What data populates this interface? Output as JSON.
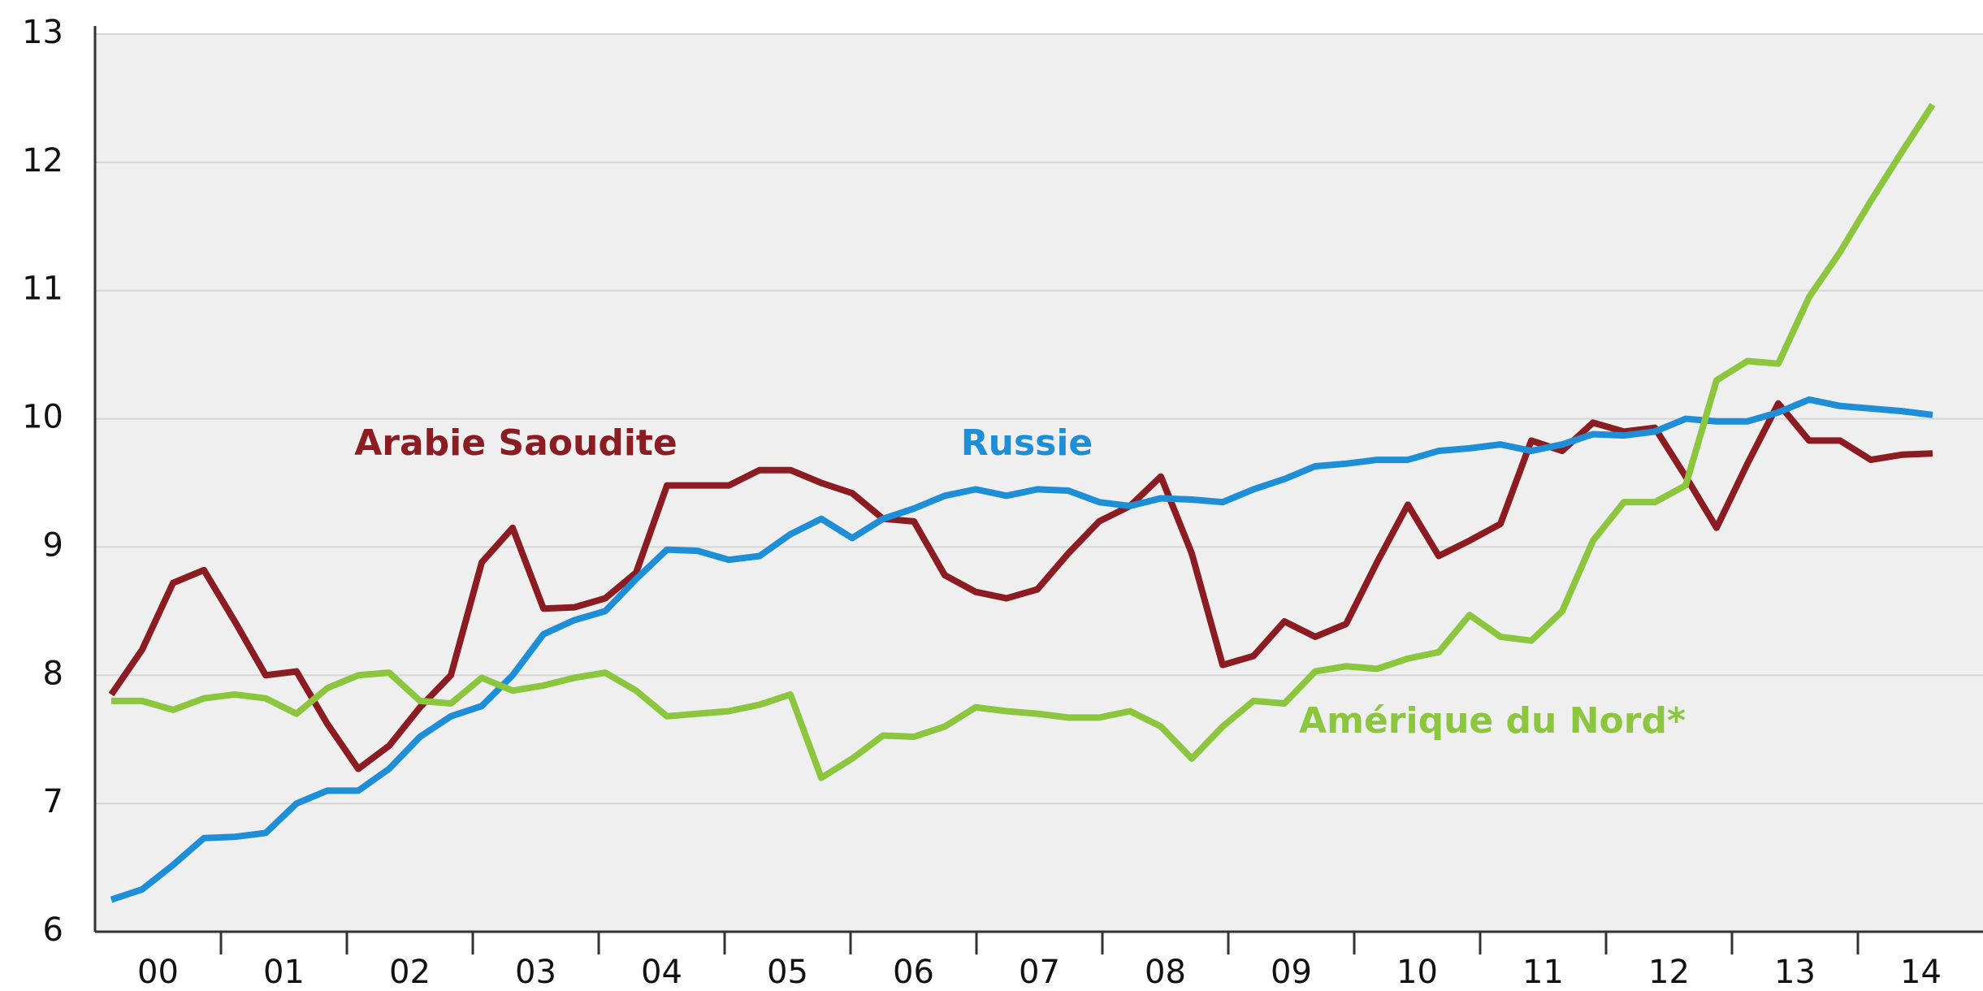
{
  "chart_data": {
    "type": "line",
    "categories": [
      "00",
      null,
      null,
      null,
      "01",
      null,
      null,
      null,
      "02",
      null,
      null,
      null,
      "03",
      null,
      null,
      null,
      "04",
      null,
      null,
      null,
      "05",
      null,
      null,
      null,
      "06",
      null,
      null,
      null,
      "07",
      null,
      null,
      null,
      "08",
      null,
      null,
      null,
      "09",
      null,
      null,
      null,
      "10",
      null,
      null,
      null,
      "11",
      null,
      null,
      null,
      "12",
      null,
      null,
      null,
      "13",
      null,
      null,
      null,
      "14",
      null,
      null,
      null
    ],
    "ylim": [
      6,
      13
    ],
    "yticks": [
      6,
      7,
      8,
      9,
      10,
      11,
      12,
      13
    ],
    "grid": true,
    "series": [
      {
        "name": "Arabie Saoudite",
        "color": "#8b1c22",
        "values": [
          7.85,
          8.2,
          8.72,
          8.82,
          8.42,
          8.0,
          8.03,
          7.62,
          7.27,
          7.45,
          7.75,
          8.0,
          8.88,
          9.15,
          8.52,
          8.53,
          8.6,
          8.8,
          9.48,
          9.48,
          9.48,
          9.6,
          9.6,
          9.5,
          9.42,
          9.22,
          9.2,
          8.78,
          8.65,
          8.6,
          8.67,
          8.95,
          9.2,
          9.32,
          9.55,
          8.95,
          8.08,
          8.15,
          8.42,
          8.3,
          8.4,
          8.88,
          9.33,
          8.93,
          9.05,
          9.18,
          9.83,
          9.75,
          9.97,
          9.9,
          9.93,
          9.55,
          9.15,
          9.65,
          10.12,
          9.83,
          9.83,
          9.68,
          9.72,
          9.73
        ]
      },
      {
        "name": "Russie",
        "color": "#1e8fd6",
        "values": [
          6.25,
          6.33,
          6.52,
          6.73,
          6.74,
          6.77,
          7.0,
          7.1,
          7.1,
          7.27,
          7.52,
          7.68,
          7.76,
          8.0,
          8.32,
          8.43,
          8.5,
          8.75,
          8.98,
          8.97,
          8.9,
          8.93,
          9.1,
          9.22,
          9.07,
          9.22,
          9.3,
          9.4,
          9.45,
          9.4,
          9.45,
          9.44,
          9.35,
          9.32,
          9.38,
          9.37,
          9.35,
          9.45,
          9.53,
          9.63,
          9.65,
          9.68,
          9.68,
          9.75,
          9.77,
          9.8,
          9.75,
          9.8,
          9.88,
          9.87,
          9.9,
          10.0,
          9.98,
          9.98,
          10.05,
          10.15,
          10.1,
          10.08,
          10.06,
          10.03
        ]
      },
      {
        "name": "Amérique du Nord*",
        "color": "#8cc63f",
        "values": [
          7.8,
          7.8,
          7.73,
          7.82,
          7.85,
          7.82,
          7.7,
          7.9,
          8.0,
          8.02,
          7.8,
          7.78,
          7.98,
          7.88,
          7.92,
          7.98,
          8.02,
          7.88,
          7.68,
          7.7,
          7.72,
          7.77,
          7.85,
          7.2,
          7.35,
          7.53,
          7.52,
          7.6,
          7.75,
          7.72,
          7.7,
          7.67,
          7.67,
          7.72,
          7.6,
          7.35,
          7.6,
          7.8,
          7.78,
          8.03,
          8.07,
          8.05,
          8.13,
          8.18,
          8.47,
          8.3,
          8.27,
          8.5,
          9.05,
          9.35,
          9.35,
          9.48,
          10.3,
          10.45,
          10.43,
          10.95,
          11.3,
          11.7,
          12.08,
          12.45
        ]
      }
    ]
  }
}
